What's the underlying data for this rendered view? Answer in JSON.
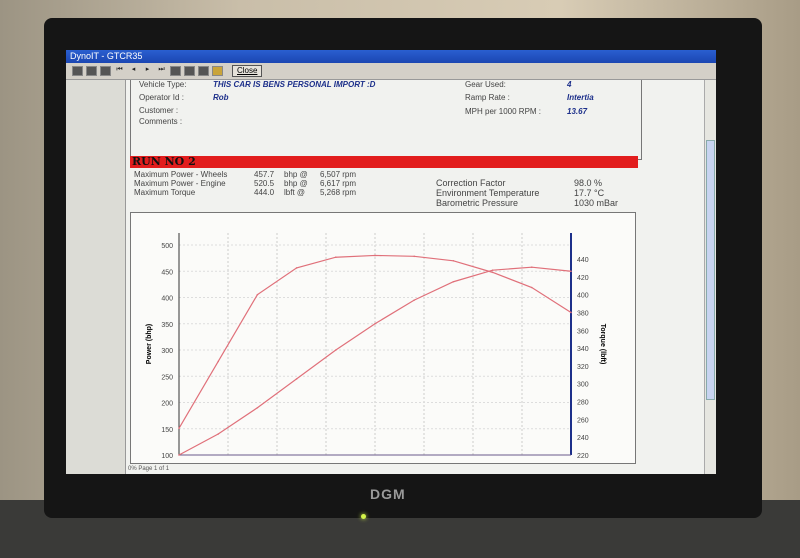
{
  "window": {
    "title": "DynoIT - GTCR35",
    "close_label": "Close"
  },
  "toolbar": {
    "icons": [
      "single-page-icon",
      "multi-page-icon",
      "fit-page-icon",
      "first-icon",
      "prev-icon",
      "next-icon",
      "last-icon",
      "print-setup-icon",
      "print-icon",
      "save-icon",
      "open-icon"
    ]
  },
  "info": {
    "vehicle_type_label": "Vehicle Type:",
    "vehicle_type": "THIS CAR IS BENS PERSONAL IMPORT :D",
    "operator_label": "Operator Id :",
    "operator": "Rob",
    "customer_label": "Customer :",
    "comments_label": "Comments :",
    "gear_label": "Gear Used:",
    "gear": "4",
    "ramp_label": "Ramp Rate :",
    "ramp": "Intertia",
    "mph_label": "MPH per 1000 RPM :",
    "mph": "13.67"
  },
  "run": {
    "title": "RUN NO 2",
    "rows": [
      {
        "label": "Maximum Power - Wheels",
        "value": "457.7",
        "unit": "bhp @",
        "rpm": "6,507 rpm"
      },
      {
        "label": "Maximum Power - Engine",
        "value": "520.5",
        "unit": "bhp @",
        "rpm": "6,617 rpm"
      },
      {
        "label": "Maximum Torque",
        "value": "444.0",
        "unit": "lbft @",
        "rpm": "5,268 rpm"
      }
    ],
    "conditions": [
      {
        "label": "Correction Factor",
        "value": "98.0 %"
      },
      {
        "label": "Environment Temperature",
        "value": "17.7 °C"
      },
      {
        "label": "Barometric Pressure",
        "value": "1030 mBar"
      }
    ]
  },
  "status": {
    "text": "0% Page 1 of 1"
  },
  "monitor": {
    "brand": "DGM"
  },
  "chart_data": {
    "type": "line",
    "grid": true,
    "y_left": {
      "label": "Power (bhp)",
      "ticks": [
        100,
        150,
        200,
        250,
        300,
        350,
        400,
        450,
        500
      ],
      "range": [
        100,
        500
      ]
    },
    "y_right": {
      "label": "Torque (lbft)",
      "ticks": [
        220,
        240,
        260,
        280,
        300,
        320,
        340,
        360,
        380,
        400,
        420,
        440
      ],
      "range": [
        220,
        440
      ]
    },
    "series": [
      {
        "axis": "left",
        "color": "#e0707a",
        "values": [
          100,
          140,
          190,
          245,
          300,
          350,
          395,
          430,
          452,
          457.7,
          450
        ]
      },
      {
        "axis": "right",
        "color": "#e0707a",
        "values": [
          250,
          325,
          400,
          430,
          442,
          444,
          443,
          438,
          425,
          408,
          380
        ]
      }
    ]
  }
}
